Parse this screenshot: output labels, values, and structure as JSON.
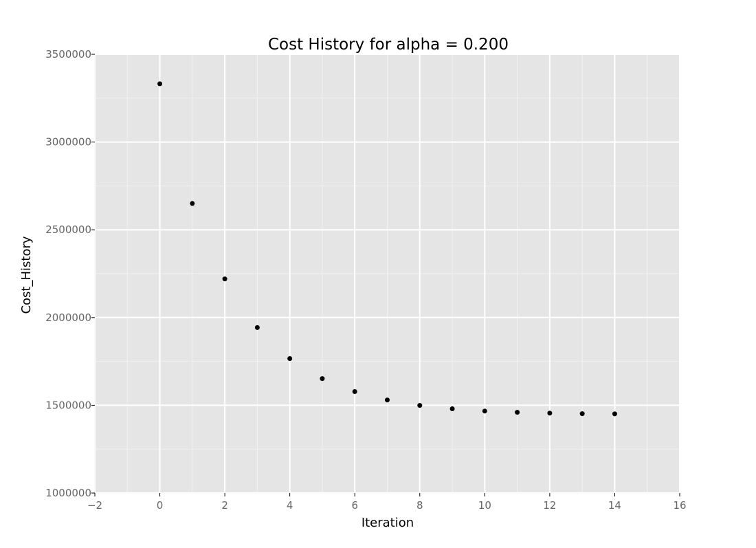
{
  "chart_data": {
    "type": "scatter",
    "title": "Cost History for alpha = 0.200",
    "xlabel": "Iteration",
    "ylabel": "Cost_History",
    "xlim": [
      -2,
      16
    ],
    "ylim": [
      1000000,
      3500000
    ],
    "x_ticks": [
      -2,
      0,
      2,
      4,
      6,
      8,
      10,
      12,
      14,
      16
    ],
    "x_tick_labels": [
      "−2",
      "0",
      "2",
      "4",
      "6",
      "8",
      "10",
      "12",
      "14",
      "16"
    ],
    "y_ticks": [
      1000000,
      1500000,
      2000000,
      2500000,
      3000000,
      3500000
    ],
    "y_tick_labels": [
      "1000000",
      "1500000",
      "2000000",
      "2500000",
      "3000000",
      "3500000"
    ],
    "grid": true,
    "x": [
      0,
      1,
      2,
      3,
      4,
      5,
      6,
      7,
      8,
      9,
      10,
      11,
      12,
      13,
      14
    ],
    "y": [
      3332000,
      2650000,
      2220000,
      1943000,
      1766000,
      1652000,
      1578000,
      1530000,
      1499000,
      1480000,
      1467000,
      1460000,
      1455000,
      1452000,
      1451000
    ],
    "colors": {
      "panel_background": "#e5e5e5",
      "grid_major": "#ffffff",
      "grid_minor": "#f2f2f2",
      "point": "#000000",
      "tick_text": "#666666"
    }
  }
}
